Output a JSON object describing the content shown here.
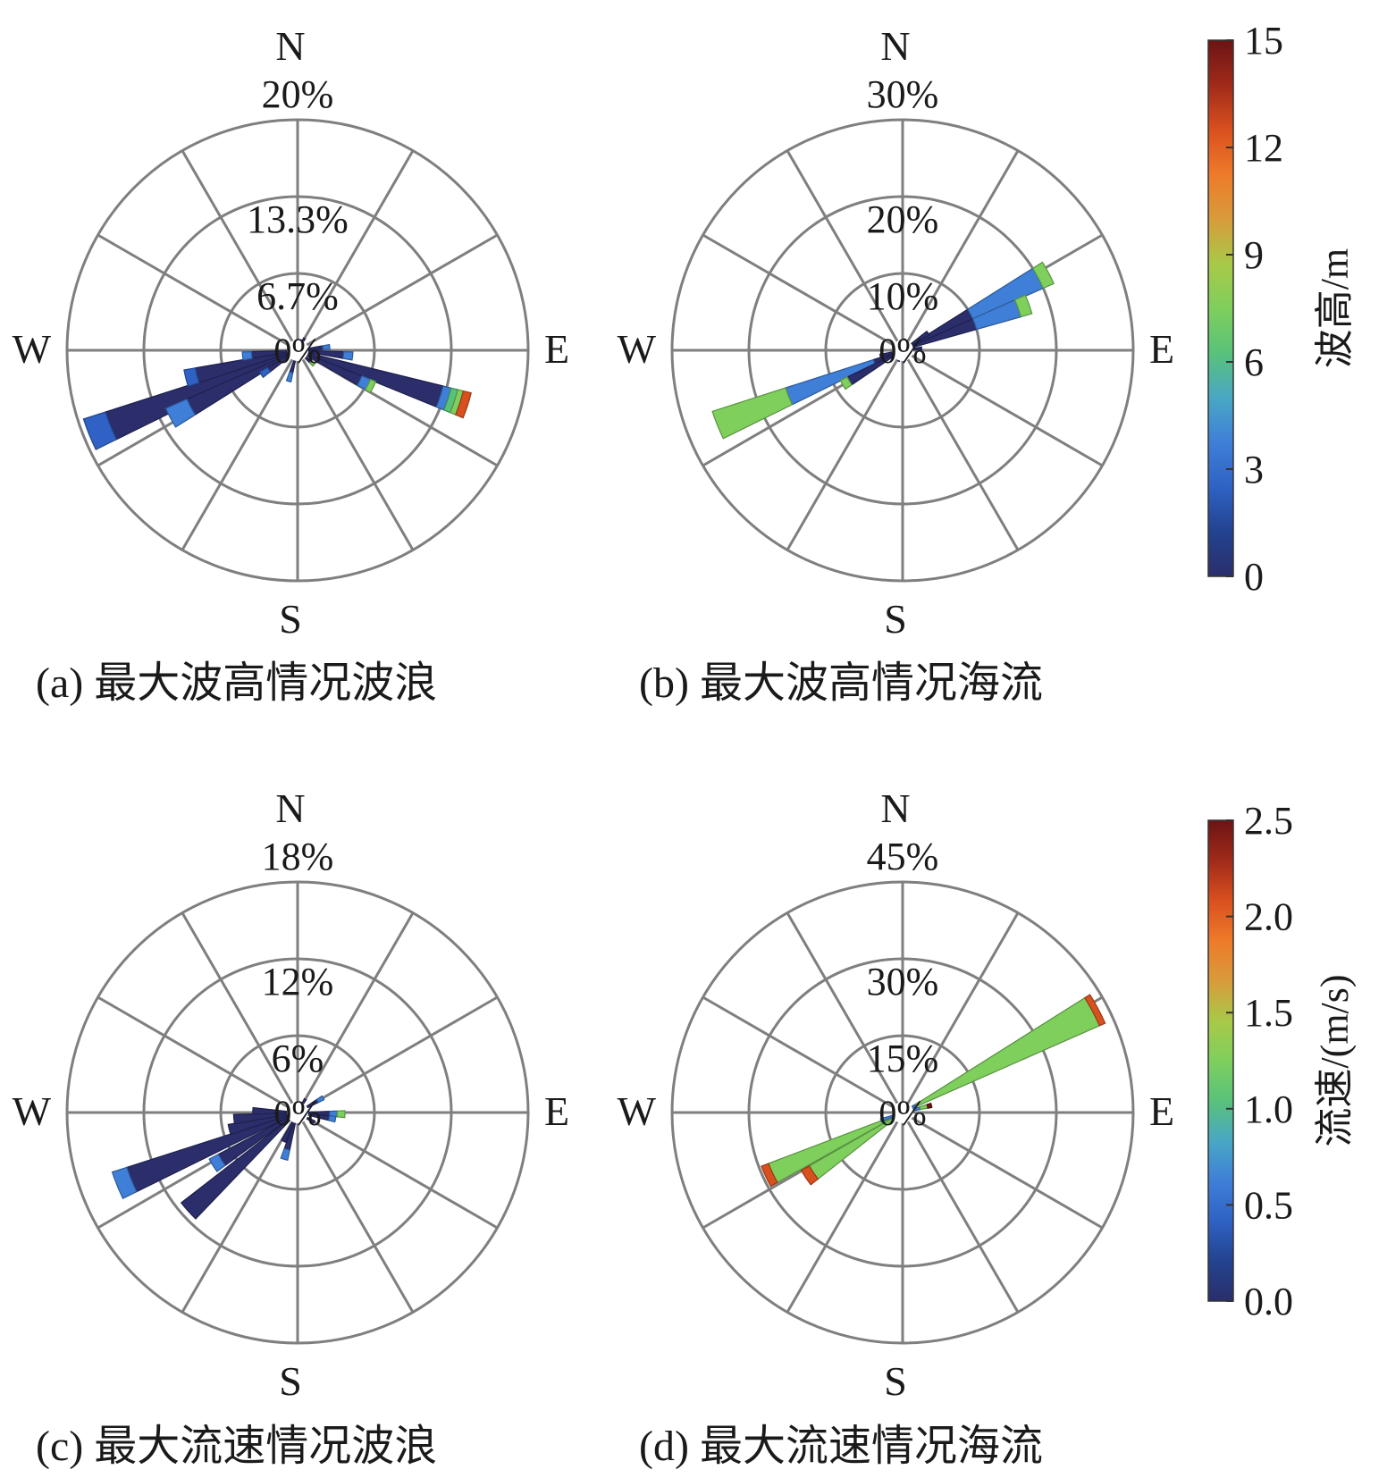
{
  "colors": {
    "grid": "#7f7f7f",
    "colormap": [
      "#2b2e6b",
      "#23438f",
      "#2f62c4",
      "#3f7fd8",
      "#49a7c4",
      "#59c27a",
      "#7fcf5d",
      "#a8c948",
      "#d89b3a",
      "#ee7a2a",
      "#d9501f",
      "#a02a1a",
      "#6b1414"
    ]
  },
  "colorbars": [
    {
      "label": "波高/m",
      "min": 0,
      "max": 15,
      "ticks": [
        "0",
        "3",
        "6",
        "9",
        "12",
        "15"
      ]
    },
    {
      "label": "流速/(m/s)",
      "min": 0,
      "max": 2.5,
      "ticks": [
        "0.0",
        "0.5",
        "1.0",
        "1.5",
        "2.0",
        "2.5"
      ]
    }
  ],
  "chart_data": [
    {
      "type": "polar-bar",
      "caption": "(a) 最大波高情况波浪",
      "directions": [
        "N",
        "E",
        "S",
        "W"
      ],
      "center_label": "0%",
      "radial_labels": [
        "6.7%",
        "13.3%",
        "20%"
      ],
      "rmax": 20,
      "colorbar": 0,
      "sectors": [
        {
          "dir": 248,
          "stack": [
            [
              0,
              17.5
            ],
            [
              2,
              2.0
            ]
          ]
        },
        {
          "dir": 242,
          "stack": [
            [
              0,
              10.5
            ],
            [
              3,
              2.0
            ]
          ]
        },
        {
          "dir": 256,
          "stack": [
            [
              0,
              9.0
            ],
            [
              2,
              1.0
            ]
          ]
        },
        {
          "dir": 264,
          "stack": [
            [
              0,
              4.0
            ],
            [
              3,
              0.8
            ]
          ]
        },
        {
          "dir": 236,
          "stack": [
            [
              0,
              3.0
            ],
            [
              2,
              0.8
            ]
          ]
        },
        {
          "dir": 196,
          "stack": [
            [
              0,
              2.0
            ],
            [
              3,
              0.8
            ]
          ]
        },
        {
          "dir": 108,
          "stack": [
            [
              0,
              13.0
            ],
            [
              3,
              0.7
            ],
            [
              5,
              0.6
            ],
            [
              6,
              0.5
            ],
            [
              10,
              0.7
            ]
          ]
        },
        {
          "dir": 116,
          "stack": [
            [
              0,
              6.0
            ],
            [
              3,
              0.8
            ],
            [
              6,
              0.5
            ]
          ]
        },
        {
          "dir": 96,
          "stack": [
            [
              0,
              4.0
            ],
            [
              3,
              0.8
            ]
          ]
        },
        {
          "dir": 84,
          "stack": [
            [
              0,
              2.2
            ],
            [
              3,
              0.6
            ]
          ]
        },
        {
          "dir": 132,
          "stack": [
            [
              0,
              1.5
            ],
            [
              6,
              0.4
            ]
          ]
        },
        {
          "dir": 30,
          "stack": [
            [
              0,
              1.2
            ]
          ]
        }
      ]
    },
    {
      "type": "polar-bar",
      "caption": "(b) 最大波高情况海流",
      "directions": [
        "N",
        "E",
        "S",
        "W"
      ],
      "center_label": "0%",
      "radial_labels": [
        "10%",
        "20%",
        "30%"
      ],
      "rmax": 30,
      "colorbar": 0,
      "sectors": [
        {
          "dir": 248,
          "stack": [
            [
              0,
              4.0
            ],
            [
              3,
              12.0
            ],
            [
              6,
              10.0
            ]
          ]
        },
        {
          "dir": 240,
          "stack": [
            [
              0,
              8.0
            ],
            [
              6,
              1.0
            ]
          ]
        },
        {
          "dir": 256,
          "stack": [
            [
              0,
              3.0
            ]
          ]
        },
        {
          "dir": 62,
          "stack": [
            [
              0,
              10.0
            ],
            [
              3,
              10.0
            ],
            [
              6,
              1.5
            ]
          ]
        },
        {
          "dir": 70,
          "stack": [
            [
              0,
              10.0
            ],
            [
              3,
              6.0
            ],
            [
              6,
              1.5
            ]
          ]
        },
        {
          "dir": 56,
          "stack": [
            [
              0,
              4.0
            ]
          ]
        },
        {
          "dir": 84,
          "stack": [
            [
              0,
              2.5
            ]
          ]
        },
        {
          "dir": 10,
          "stack": [
            [
              0,
              1.5
            ]
          ]
        },
        {
          "dir": 200,
          "stack": [
            [
              0,
              1.5
            ]
          ]
        }
      ]
    },
    {
      "type": "polar-bar",
      "caption": "(c) 最大流速情况波浪",
      "directions": [
        "N",
        "E",
        "S",
        "W"
      ],
      "center_label": "0%",
      "radial_labels": [
        "6%",
        "12%",
        "18%"
      ],
      "rmax": 18,
      "colorbar": 0,
      "sectors": [
        {
          "dir": 248,
          "stack": [
            [
              0,
              14.0
            ],
            [
              3,
              1.2
            ]
          ]
        },
        {
          "dir": 228,
          "stack": [
            [
              0,
              11.5
            ]
          ]
        },
        {
          "dir": 238,
          "stack": [
            [
              0,
              7.0
            ],
            [
              3,
              0.8
            ]
          ]
        },
        {
          "dir": 256,
          "stack": [
            [
              0,
              5.5
            ]
          ]
        },
        {
          "dir": 264,
          "stack": [
            [
              0,
              5.0
            ]
          ]
        },
        {
          "dir": 272,
          "stack": [
            [
              0,
              3.5
            ]
          ]
        },
        {
          "dir": 196,
          "stack": [
            [
              0,
              3.0
            ],
            [
              3,
              0.8
            ]
          ]
        },
        {
          "dir": 206,
          "stack": [
            [
              0,
              2.5
            ]
          ]
        },
        {
          "dir": 92,
          "stack": [
            [
              0,
              2.5
            ],
            [
              3,
              0.6
            ],
            [
              6,
              0.6
            ]
          ]
        },
        {
          "dir": 100,
          "stack": [
            [
              0,
              2.5
            ],
            [
              3,
              0.5
            ]
          ]
        },
        {
          "dir": 60,
          "stack": [
            [
              0,
              1.8
            ],
            [
              3,
              0.5
            ]
          ]
        },
        {
          "dir": 120,
          "stack": [
            [
              0,
              1.5
            ]
          ]
        },
        {
          "dir": 30,
          "stack": [
            [
              0,
              1.2
            ]
          ]
        }
      ]
    },
    {
      "type": "polar-bar",
      "caption": "(d) 最大流速情况海流",
      "directions": [
        "N",
        "E",
        "S",
        "W"
      ],
      "center_label": "0%",
      "radial_labels": [
        "15%",
        "30%",
        "45%"
      ],
      "rmax": 45,
      "colorbar": 1,
      "sectors": [
        {
          "dir": 62,
          "stack": [
            [
              3,
              3.0
            ],
            [
              6,
              39.0
            ],
            [
              10,
              1.2
            ]
          ]
        },
        {
          "dir": 245,
          "stack": [
            [
              6,
              28.0
            ],
            [
              10,
              1.5
            ]
          ]
        },
        {
          "dir": 236,
          "stack": [
            [
              6,
              21.0
            ],
            [
              10,
              1.8
            ]
          ]
        },
        {
          "dir": 76,
          "stack": [
            [
              3,
              3.5
            ],
            [
              6,
              1.5
            ],
            [
              12,
              0.8
            ]
          ]
        },
        {
          "dir": 250,
          "stack": [
            [
              3,
              4.5
            ]
          ]
        }
      ]
    }
  ]
}
